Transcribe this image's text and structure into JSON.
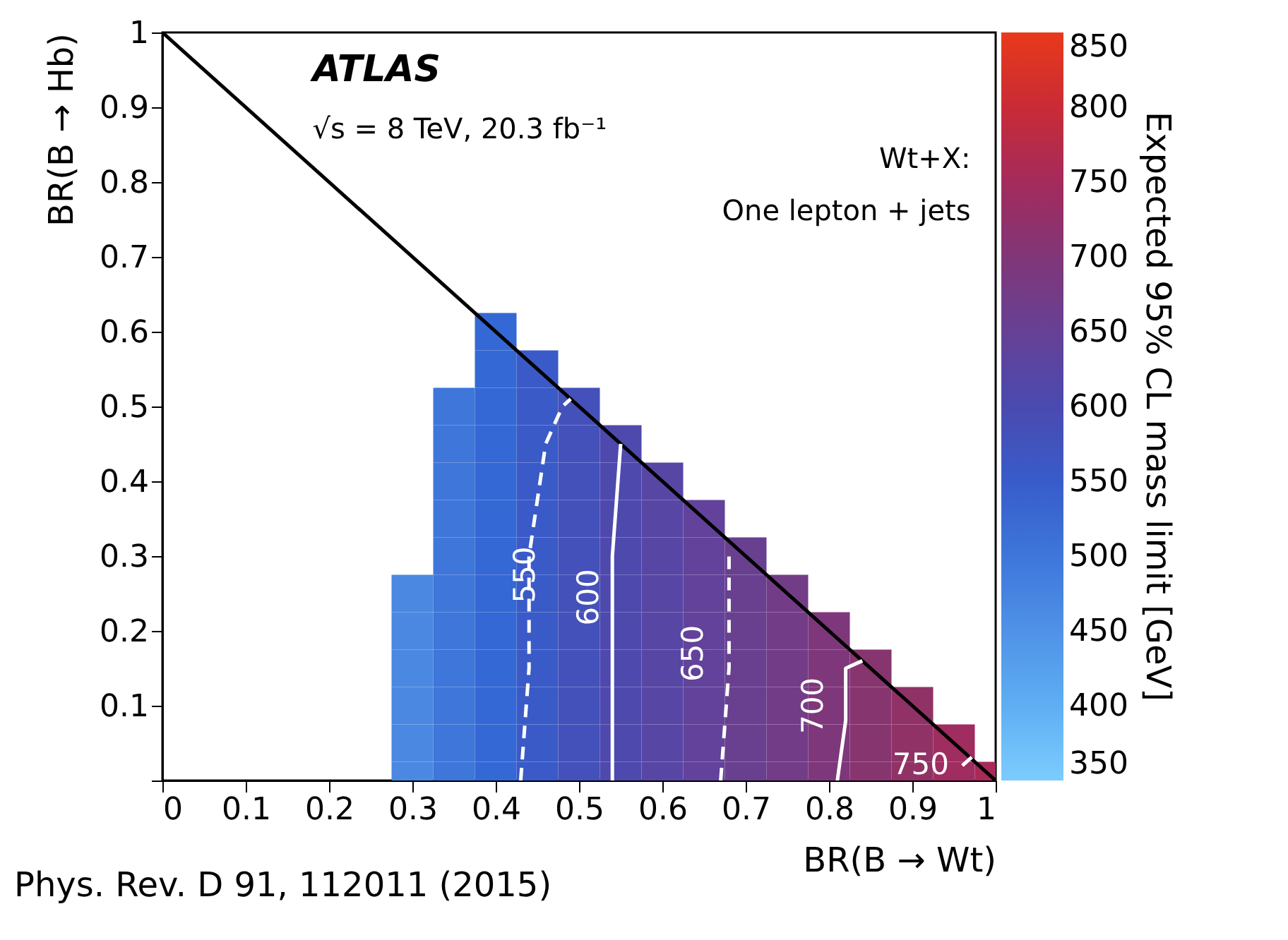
{
  "chart_data": {
    "type": "scatter",
    "xlabel": "BR(B → Wt)",
    "ylabel": "BR(B → Hb)",
    "clabel": "Expected 95% CL mass limit [GeV]",
    "clim": [
      350,
      850
    ],
    "cticks": [
      350,
      400,
      450,
      500,
      550,
      600,
      650,
      700,
      750,
      800,
      850
    ],
    "xlim": [
      0,
      1
    ],
    "ylim": [
      0,
      1
    ],
    "xticks": [
      0,
      0.1,
      0.2,
      0.3,
      0.4,
      0.5,
      0.6,
      0.7,
      0.8,
      0.9,
      1
    ],
    "yticks": [
      {
        "value": 0,
        "label": null
      },
      0.1,
      0.2,
      0.3,
      0.4,
      0.5,
      0.6,
      0.7,
      0.8,
      0.9,
      1
    ],
    "series": [
      {
        "type": "scatter",
        "marker": "square",
        "x": [
          0.3,
          0.3,
          0.3,
          0.3,
          0.3,
          0.3
        ],
        "values": [
          0,
          0.05,
          0.1,
          0.15,
          0.2,
          0.25
        ],
        "cvalues": [
          470,
          470,
          470,
          470,
          470,
          470
        ]
      },
      {
        "type": "scatter",
        "marker": "square",
        "x": [
          0.35,
          0.35,
          0.35,
          0.35,
          0.35,
          0.35,
          0.35,
          0.35,
          0.35,
          0.35,
          0.35
        ],
        "values": [
          0,
          0.05,
          0.1,
          0.15,
          0.2,
          0.25,
          0.3,
          0.35,
          0.4,
          0.45,
          0.5
        ],
        "cvalues": [
          500,
          500,
          500,
          500,
          500,
          500,
          500,
          500,
          500,
          500,
          500
        ]
      },
      {
        "type": "scatter",
        "marker": "square",
        "x": [
          0.4,
          0.4,
          0.4,
          0.4,
          0.4,
          0.4,
          0.4,
          0.4,
          0.4,
          0.4,
          0.4,
          0.4,
          0.4
        ],
        "values": [
          0,
          0.05,
          0.1,
          0.15,
          0.2,
          0.25,
          0.3,
          0.35,
          0.4,
          0.45,
          0.5,
          0.55,
          0.6
        ],
        "cvalues": [
          525,
          525,
          525,
          525,
          525,
          525,
          525,
          525,
          525,
          525,
          525,
          525,
          525
        ]
      },
      {
        "type": "scatter",
        "marker": "square",
        "x": [
          0.45,
          0.45,
          0.45,
          0.45,
          0.45,
          0.45,
          0.45,
          0.45,
          0.45,
          0.45,
          0.45,
          0.45
        ],
        "values": [
          0,
          0.05,
          0.1,
          0.15,
          0.2,
          0.25,
          0.3,
          0.35,
          0.4,
          0.45,
          0.5,
          0.55
        ],
        "cvalues": [
          555,
          555,
          555,
          555,
          555,
          555,
          555,
          555,
          555,
          555,
          555,
          555
        ]
      },
      {
        "type": "scatter",
        "marker": "square",
        "x": [
          0.5,
          0.5,
          0.5,
          0.5,
          0.5,
          0.5,
          0.5,
          0.5,
          0.5,
          0.5,
          0.5
        ],
        "values": [
          0,
          0.05,
          0.1,
          0.15,
          0.2,
          0.25,
          0.3,
          0.35,
          0.4,
          0.45,
          0.5
        ],
        "cvalues": [
          580,
          580,
          580,
          580,
          580,
          580,
          580,
          580,
          580,
          580,
          580
        ]
      },
      {
        "type": "scatter",
        "marker": "square",
        "x": [
          0.55,
          0.55,
          0.55,
          0.55,
          0.55,
          0.55,
          0.55,
          0.55,
          0.55,
          0.55
        ],
        "values": [
          0,
          0.05,
          0.1,
          0.15,
          0.2,
          0.25,
          0.3,
          0.35,
          0.4,
          0.45
        ],
        "cvalues": [
          605,
          605,
          605,
          605,
          605,
          605,
          605,
          605,
          605,
          605
        ]
      },
      {
        "type": "scatter",
        "marker": "square",
        "x": [
          0.6,
          0.6,
          0.6,
          0.6,
          0.6,
          0.6,
          0.6,
          0.6,
          0.6
        ],
        "values": [
          0,
          0.05,
          0.1,
          0.15,
          0.2,
          0.25,
          0.3,
          0.35,
          0.4
        ],
        "cvalues": [
          620,
          620,
          620,
          620,
          620,
          620,
          620,
          620,
          620
        ]
      },
      {
        "type": "scatter",
        "marker": "square",
        "x": [
          0.65,
          0.65,
          0.65,
          0.65,
          0.65,
          0.65,
          0.65,
          0.65
        ],
        "values": [
          0,
          0.05,
          0.1,
          0.15,
          0.2,
          0.25,
          0.3,
          0.35
        ],
        "cvalues": [
          640,
          640,
          640,
          640,
          640,
          640,
          640,
          640
        ]
      },
      {
        "type": "scatter",
        "marker": "square",
        "x": [
          0.7,
          0.7,
          0.7,
          0.7,
          0.7,
          0.7,
          0.7
        ],
        "values": [
          0,
          0.05,
          0.1,
          0.15,
          0.2,
          0.25,
          0.3
        ],
        "cvalues": [
          660,
          660,
          660,
          660,
          660,
          660,
          660
        ]
      },
      {
        "type": "scatter",
        "marker": "square",
        "x": [
          0.75,
          0.75,
          0.75,
          0.75,
          0.75,
          0.75
        ],
        "values": [
          0,
          0.05,
          0.1,
          0.15,
          0.2,
          0.25
        ],
        "cvalues": [
          675,
          675,
          675,
          675,
          675,
          675
        ]
      },
      {
        "type": "scatter",
        "marker": "square",
        "x": [
          0.8,
          0.8,
          0.8,
          0.8,
          0.8
        ],
        "values": [
          0,
          0.05,
          0.1,
          0.15,
          0.2
        ],
        "cvalues": [
          695,
          695,
          695,
          695,
          695
        ]
      },
      {
        "type": "scatter",
        "marker": "square",
        "x": [
          0.85,
          0.85,
          0.85,
          0.85
        ],
        "values": [
          0,
          0.05,
          0.1,
          0.15
        ],
        "cvalues": [
          715,
          715,
          715,
          715
        ]
      },
      {
        "type": "scatter",
        "marker": "square",
        "x": [
          0.9,
          0.9,
          0.9
        ],
        "values": [
          0,
          0.05,
          0.1
        ],
        "cvalues": [
          730,
          730,
          730
        ]
      },
      {
        "type": "scatter",
        "marker": "square",
        "x": [
          0.95,
          0.95
        ],
        "values": [
          0,
          0.05
        ],
        "cvalues": [
          745,
          745
        ]
      },
      {
        "type": "scatter",
        "marker": "square",
        "x": [
          1.0
        ],
        "values": [
          0
        ],
        "cvalues": [
          755
        ]
      },
      {
        "type": "line",
        "color": "#000000",
        "line_style": "solid",
        "x": [
          0,
          1
        ],
        "values": [
          1,
          0
        ]
      },
      {
        "type": "line",
        "name": "550",
        "color": "#ffffff",
        "line_style": "dashed",
        "x": [
          0.43,
          0.44,
          0.44,
          0.46,
          0.48,
          0.49
        ],
        "values": [
          0,
          0.15,
          0.3,
          0.45,
          0.5,
          0.51
        ]
      },
      {
        "type": "line",
        "name": "600",
        "color": "#ffffff",
        "line_style": "solid",
        "x": [
          0.54,
          0.54,
          0.54,
          0.55
        ],
        "values": [
          0,
          0.15,
          0.3,
          0.45
        ]
      },
      {
        "type": "line",
        "name": "650",
        "color": "#ffffff",
        "line_style": "dashed",
        "x": [
          0.67,
          0.68,
          0.68,
          0.68,
          0.68
        ],
        "values": [
          0,
          0.15,
          0.2,
          0.27,
          0.3
        ]
      },
      {
        "type": "line",
        "name": "700",
        "color": "#ffffff",
        "line_style": "solid",
        "x": [
          0.81,
          0.82,
          0.82,
          0.82,
          0.84
        ],
        "values": [
          0,
          0.08,
          0.12,
          0.15,
          0.16
        ]
      },
      {
        "type": "line",
        "name": "750",
        "color": "#ffffff",
        "line_style": "dashed",
        "x": [
          0.96,
          0.98
        ],
        "values": [
          0.02,
          0.04
        ]
      }
    ],
    "grid": false,
    "annotations": [
      "ATLAS",
      "√s = 8 TeV, 20.3 fb⁻¹",
      "Wt+X:",
      "One lepton + jets",
      "Phys. Rev. D 91, 112011 (2015)"
    ]
  }
}
